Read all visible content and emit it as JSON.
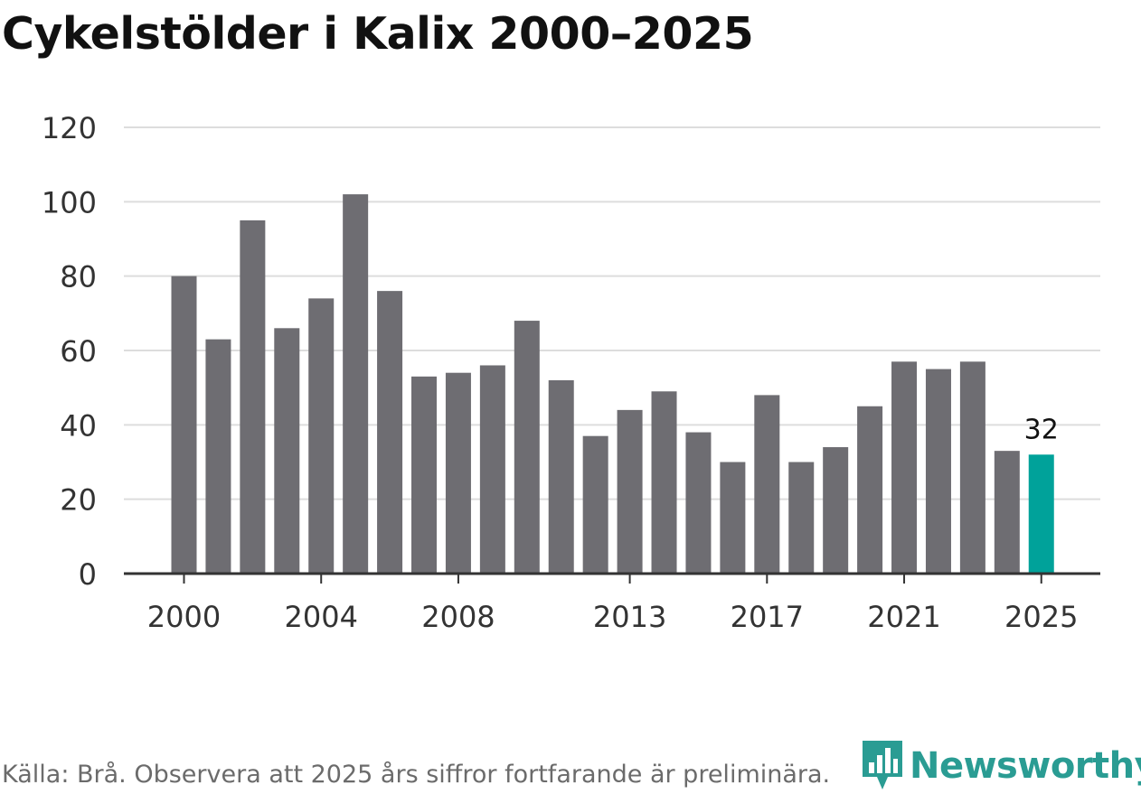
{
  "title": "Cykelstölder i Kalix 2000–2025",
  "source": "Källa: Brå. Observera att 2025 års siffror fortfarande är preliminära.",
  "brand": {
    "name": "Newsworthy",
    "logo_icon": "bar-chart-pin-icon",
    "color": "#2a9c93"
  },
  "colors": {
    "bar": "#6e6d72",
    "highlight": "#00a29a",
    "grid": "#dddddd",
    "axis": "#333333",
    "text": "#333333"
  },
  "chart_data": {
    "type": "bar",
    "title": "Cykelstölder i Kalix 2000–2025",
    "xlabel": "",
    "ylabel": "",
    "ylim": [
      0,
      120
    ],
    "yticks": [
      "0",
      "20",
      "40",
      "60",
      "80",
      "100",
      "120"
    ],
    "grid": true,
    "categories": [
      2000,
      2001,
      2002,
      2003,
      2004,
      2005,
      2006,
      2007,
      2008,
      2009,
      2010,
      2011,
      2012,
      2013,
      2014,
      2015,
      2016,
      2017,
      2018,
      2019,
      2020,
      2021,
      2022,
      2023,
      2024,
      2025
    ],
    "values": [
      80,
      63,
      95,
      66,
      74,
      102,
      76,
      53,
      54,
      56,
      68,
      52,
      37,
      44,
      49,
      38,
      30,
      48,
      30,
      34,
      45,
      57,
      55,
      57,
      33,
      32
    ],
    "xtick_labels": [
      {
        "category": 2000,
        "label": "2000"
      },
      {
        "category": 2004,
        "label": "2004"
      },
      {
        "category": 2008,
        "label": "2008"
      },
      {
        "category": 2013,
        "label": "2013"
      },
      {
        "category": 2017,
        "label": "2017"
      },
      {
        "category": 2021,
        "label": "2021"
      },
      {
        "category": 2025,
        "label": "2025"
      }
    ],
    "highlight_category": 2025,
    "data_labels": [
      {
        "category": 2025,
        "label": "32"
      }
    ]
  }
}
